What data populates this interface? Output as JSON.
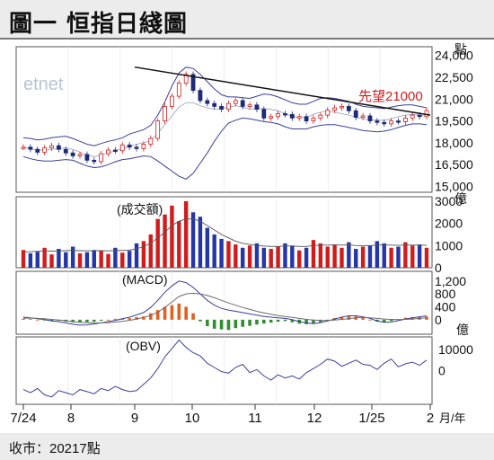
{
  "header": {
    "title": "圖一 恒指日綫圖"
  },
  "footer": {
    "close_text": "收市：20217點"
  },
  "chart_data": {
    "type": "line",
    "title": "恒指日綫圖",
    "logo_text": "etnet",
    "months": [
      "7/24",
      "8",
      "9",
      "10",
      "11",
      "12",
      "1/25",
      "2"
    ],
    "month_unit": "月/年",
    "panels": [
      {
        "id": "price",
        "yticks": [
          24000,
          22500,
          21000,
          19500,
          18000,
          16500,
          15000
        ],
        "yunit": "點",
        "ylim": [
          14600,
          24600
        ],
        "annotation": "先望21000",
        "upper_band": [
          18350,
          18300,
          18200,
          18250,
          18350,
          18400,
          18450,
          18300,
          18100,
          17900,
          17800,
          17950,
          18100,
          18200,
          18350,
          18600,
          18750,
          18900,
          19200,
          19900,
          20800,
          21900,
          22800,
          23200,
          23100,
          22700,
          22200,
          21700,
          21300,
          21150,
          21150,
          21100,
          21050,
          21200,
          21350,
          21300,
          21150,
          20950,
          20750,
          20650,
          20650,
          20850,
          21050,
          21100,
          21050,
          20950,
          20850,
          20650,
          20500,
          20450,
          20400,
          20350,
          20450,
          20550,
          20600,
          20600,
          20500,
          20400
        ],
        "middle_band": [
          17700,
          17600,
          17500,
          17500,
          17550,
          17600,
          17650,
          17550,
          17350,
          17150,
          17050,
          17150,
          17300,
          17450,
          17600,
          17750,
          17900,
          18000,
          18150,
          18650,
          19250,
          19850,
          20450,
          20750,
          20750,
          20550,
          20400,
          20300,
          20350,
          20450,
          20550,
          20450,
          20300,
          20350,
          20350,
          20300,
          20200,
          20000,
          19800,
          19750,
          19750,
          19950,
          20100,
          20150,
          20100,
          20000,
          19900,
          19750,
          19650,
          19600,
          19550,
          19550,
          19650,
          19800,
          19900,
          19950,
          19900,
          19800
        ],
        "lower_band": [
          17050,
          16900,
          16800,
          16750,
          16750,
          16800,
          16850,
          16800,
          16600,
          16400,
          16300,
          16350,
          16500,
          16700,
          16850,
          16900,
          17000,
          17100,
          17050,
          16750,
          16400,
          16050,
          15700,
          15500,
          15900,
          16600,
          17300,
          18100,
          18800,
          19350,
          19550,
          19700,
          19650,
          19550,
          19450,
          19400,
          19300,
          19100,
          18950,
          18950,
          18950,
          19100,
          19200,
          19250,
          19250,
          19150,
          19050,
          18950,
          18850,
          18800,
          18750,
          18800,
          18900,
          19050,
          19200,
          19300,
          19300,
          19250
        ],
        "close": [
          17700,
          17550,
          17350,
          17650,
          17800,
          17550,
          17300,
          17100,
          17200,
          16800,
          16700,
          17250,
          17500,
          17450,
          17850,
          17700,
          17600,
          17900,
          18300,
          19500,
          20500,
          21200,
          22100,
          22700,
          21600,
          20900,
          20700,
          20500,
          20300,
          20700,
          20900,
          20500,
          20600,
          20300,
          19700,
          19800,
          20000,
          19950,
          19700,
          19800,
          19500,
          19700,
          19900,
          20250,
          20400,
          20500,
          20200,
          19750,
          19850,
          19500,
          19400,
          19300,
          19500,
          19450,
          19700,
          19900,
          19800,
          20217
        ],
        "trendline_from": [
          "9",
          23200
        ],
        "trendline_to": [
          "2",
          19900
        ]
      },
      {
        "id": "volume",
        "label": "(成交額)",
        "yticks": [
          3000,
          2000,
          1000,
          0
        ],
        "yunit": "億",
        "ylim": [
          0,
          3200
        ],
        "values": [
          800,
          650,
          720,
          900,
          600,
          850,
          700,
          950,
          650,
          700,
          800,
          750,
          620,
          900,
          680,
          760,
          1100,
          1200,
          1500,
          2200,
          2400,
          2800,
          2100,
          3000,
          2500,
          2300,
          1800,
          1500,
          1300,
          1200,
          1050,
          900,
          1000,
          1100,
          900,
          850,
          950,
          1100,
          1000,
          780,
          900,
          1250,
          1100,
          950,
          1050,
          900,
          1150,
          850,
          950,
          1000,
          1200,
          1100,
          900,
          950,
          1150,
          1000,
          1050,
          900
        ],
        "avg": [
          700,
          720,
          740,
          760,
          750,
          760,
          770,
          780,
          770,
          760,
          770,
          770,
          760,
          770,
          780,
          790,
          850,
          950,
          1100,
          1350,
          1600,
          1900,
          2100,
          2200,
          2200,
          2100,
          1900,
          1700,
          1500,
          1350,
          1200,
          1100,
          1050,
          1000,
          980,
          960,
          960,
          980,
          980,
          960,
          960,
          1000,
          1020,
          1020,
          1030,
          1020,
          1030,
          1000,
          990,
          1000,
          1020,
          1030,
          1020,
          1010,
          1020,
          1020,
          1020,
          1010
        ]
      },
      {
        "id": "macd",
        "label": "(MACD)",
        "yticks": [
          1200,
          800,
          400,
          0
        ],
        "ylim": [
          -450,
          1500
        ],
        "hist": [
          30,
          20,
          0,
          -20,
          -40,
          -30,
          -60,
          -80,
          -90,
          -70,
          -60,
          -30,
          0,
          30,
          40,
          50,
          80,
          100,
          200,
          300,
          400,
          450,
          500,
          400,
          200,
          -50,
          -200,
          -280,
          -300,
          -320,
          -260,
          -220,
          -190,
          -150,
          -120,
          -90,
          -60,
          -40,
          -80,
          -120,
          -140,
          -120,
          -80,
          -20,
          50,
          90,
          120,
          100,
          60,
          0,
          -60,
          -80,
          -40,
          20,
          60,
          80,
          90,
          100
        ],
        "dif": [
          80,
          60,
          30,
          0,
          -40,
          -60,
          -100,
          -140,
          -170,
          -160,
          -130,
          -100,
          -60,
          -20,
          30,
          80,
          150,
          220,
          380,
          600,
          850,
          1050,
          1200,
          1150,
          1000,
          800,
          600,
          450,
          350,
          300,
          260,
          220,
          180,
          140,
          100,
          80,
          60,
          40,
          0,
          -60,
          -100,
          -120,
          -90,
          -40,
          20,
          80,
          120,
          120,
          90,
          40,
          -40,
          -80,
          -70,
          -30,
          20,
          60,
          90,
          120
        ],
        "dea": [
          50,
          50,
          40,
          30,
          10,
          -10,
          -30,
          -60,
          -80,
          -90,
          -100,
          -100,
          -90,
          -70,
          -50,
          -20,
          20,
          70,
          130,
          230,
          380,
          550,
          720,
          800,
          820,
          800,
          750,
          680,
          600,
          520,
          450,
          380,
          320,
          260,
          210,
          170,
          130,
          100,
          70,
          40,
          10,
          -10,
          -20,
          -20,
          -10,
          10,
          30,
          60,
          70,
          60,
          40,
          20,
          10,
          0,
          10,
          20,
          40,
          60
        ]
      },
      {
        "id": "obv",
        "label": "(OBV)",
        "yticks": [
          10000,
          0
        ],
        "yunit": "億",
        "ylim": [
          -16000,
          16000
        ],
        "values": [
          -9000,
          -10500,
          -8500,
          -11500,
          -12500,
          -9500,
          -10500,
          -11500,
          -9000,
          -10000,
          -11000,
          -8500,
          -9500,
          -7500,
          -9000,
          -10000,
          -9500,
          -6500,
          -3500,
          1000,
          6500,
          10500,
          14500,
          11000,
          8500,
          7000,
          3500,
          1500,
          -500,
          -1200,
          1500,
          3000,
          -1000,
          500,
          -2500,
          -4500,
          -2000,
          -3500,
          -2500,
          -4000,
          -1000,
          1000,
          3000,
          5500,
          4500,
          2000,
          3500,
          5000,
          3000,
          2500,
          500,
          3500,
          5500,
          1800,
          3200,
          4000,
          2500,
          5000
        ]
      }
    ]
  }
}
